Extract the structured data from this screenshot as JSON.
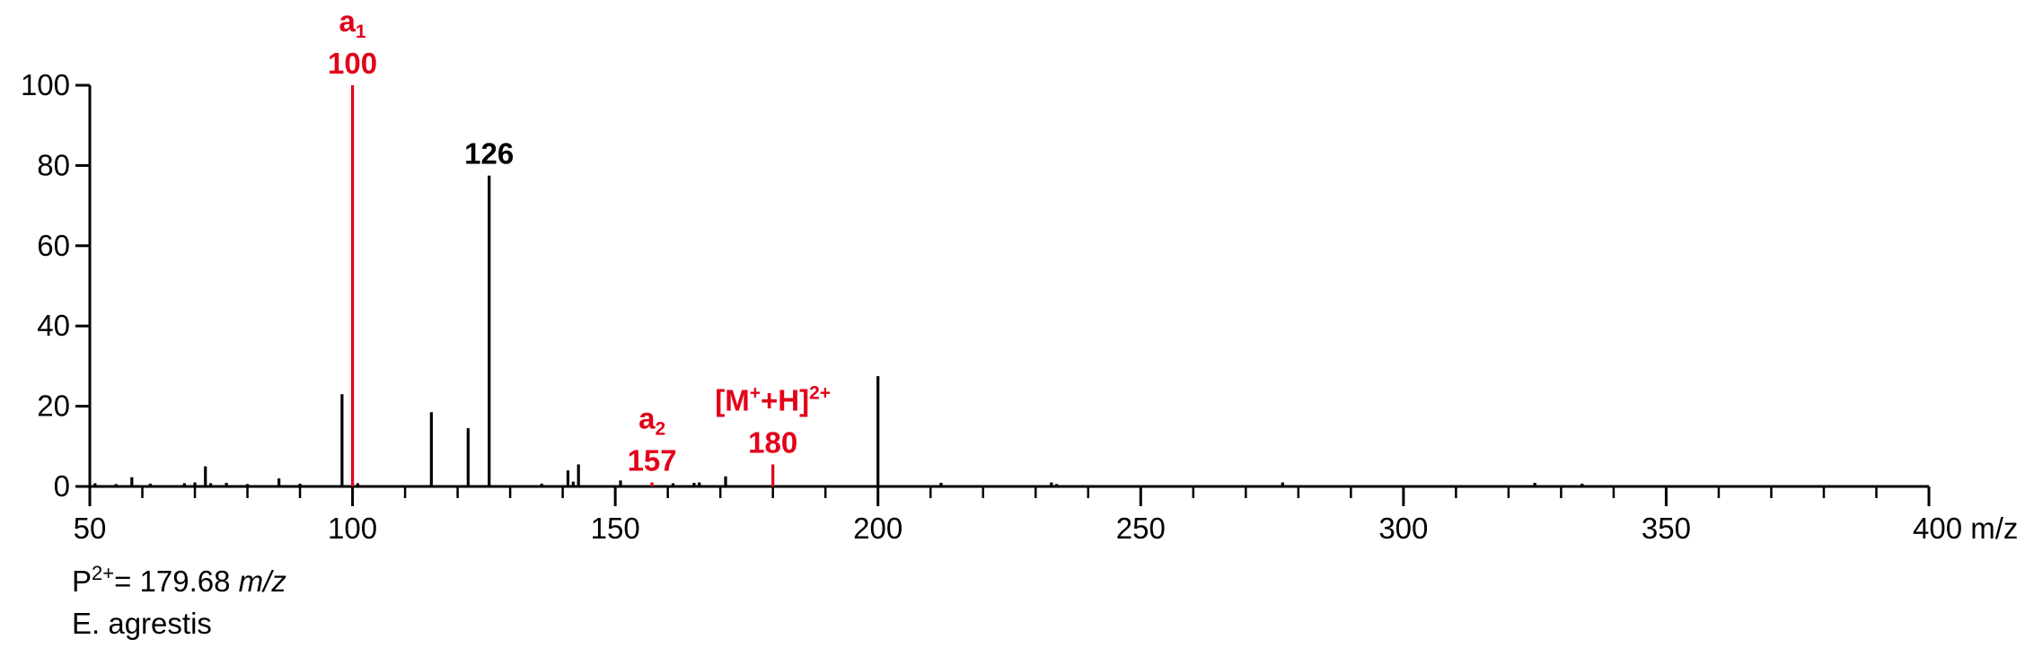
{
  "chart_data": {
    "type": "bar",
    "x_axis": {
      "min": 50,
      "max": 400,
      "major_ticks": [
        50,
        100,
        150,
        200,
        250,
        300,
        350
      ],
      "tick_labels": [
        "50",
        "100",
        "150",
        "200",
        "250",
        "300",
        "350",
        "400 m/z"
      ],
      "minor_step": 10
    },
    "y_axis": {
      "min": 0,
      "max": 100,
      "ticks": [
        0,
        20,
        40,
        60,
        80,
        100
      ],
      "tick_labels": [
        "0",
        "20",
        "40",
        "60",
        "80",
        "100"
      ]
    },
    "colors": {
      "black": "#000000",
      "red": "#e2001a"
    },
    "peaks": [
      {
        "x": 51,
        "y": 0.8,
        "color": "black"
      },
      {
        "x": 55,
        "y": 0.6,
        "color": "black"
      },
      {
        "x": 58,
        "y": 2.3,
        "color": "black"
      },
      {
        "x": 61.5,
        "y": 0.7,
        "color": "black"
      },
      {
        "x": 68,
        "y": 0.8,
        "color": "black"
      },
      {
        "x": 70,
        "y": 1.0,
        "color": "black"
      },
      {
        "x": 72,
        "y": 5.0,
        "color": "black"
      },
      {
        "x": 73,
        "y": 0.8,
        "color": "black"
      },
      {
        "x": 76,
        "y": 0.9,
        "color": "black"
      },
      {
        "x": 80,
        "y": 0.6,
        "color": "black"
      },
      {
        "x": 86,
        "y": 2.0,
        "color": "black"
      },
      {
        "x": 90,
        "y": 0.7,
        "color": "black"
      },
      {
        "x": 98,
        "y": 23,
        "color": "black"
      },
      {
        "x": 100,
        "y": 100,
        "color": "red"
      },
      {
        "x": 101,
        "y": 0.8,
        "color": "black"
      },
      {
        "x": 115,
        "y": 18.5,
        "color": "black"
      },
      {
        "x": 122,
        "y": 14.5,
        "color": "black"
      },
      {
        "x": 126,
        "y": 77.5,
        "color": "black"
      },
      {
        "x": 136,
        "y": 0.7,
        "color": "black"
      },
      {
        "x": 141,
        "y": 4.0,
        "color": "black"
      },
      {
        "x": 142,
        "y": 1.2,
        "color": "black"
      },
      {
        "x": 143,
        "y": 5.5,
        "color": "black"
      },
      {
        "x": 151,
        "y": 1.5,
        "color": "black"
      },
      {
        "x": 157,
        "y": 1.0,
        "color": "red"
      },
      {
        "x": 161,
        "y": 0.8,
        "color": "black"
      },
      {
        "x": 165,
        "y": 0.9,
        "color": "black"
      },
      {
        "x": 166,
        "y": 1.0,
        "color": "black"
      },
      {
        "x": 171,
        "y": 2.5,
        "color": "black"
      },
      {
        "x": 180,
        "y": 5.5,
        "color": "red"
      },
      {
        "x": 200,
        "y": 27.5,
        "color": "black"
      },
      {
        "x": 212,
        "y": 0.9,
        "color": "black"
      },
      {
        "x": 233,
        "y": 1.0,
        "color": "black"
      },
      {
        "x": 234,
        "y": 0.6,
        "color": "black"
      },
      {
        "x": 277,
        "y": 1.0,
        "color": "black"
      },
      {
        "x": 325,
        "y": 0.9,
        "color": "black"
      },
      {
        "x": 334,
        "y": 0.7,
        "color": "black"
      }
    ],
    "annotations": [
      {
        "id": "a1",
        "base": "a",
        "sub": "1",
        "sup": "",
        "value": "100",
        "x": 100,
        "y": 100,
        "color": "red"
      },
      {
        "id": "p126",
        "base": "",
        "sub": "",
        "sup": "",
        "value": "126",
        "x": 126,
        "y": 77.5,
        "color": "black"
      },
      {
        "id": "a2",
        "base": "a",
        "sub": "2",
        "sup": "",
        "value": "157",
        "x": 157,
        "y": 1.0,
        "color": "red"
      },
      {
        "id": "mh",
        "base": "[M",
        "sub": "",
        "sup": "+",
        "tail": "+H]",
        "tail_sup": "2+",
        "value": "180",
        "x": 180,
        "y": 5.5,
        "color": "red"
      }
    ]
  },
  "info": {
    "precursor_prefix": "P",
    "precursor_charge": "2+",
    "precursor_value": "= 179.68 ",
    "precursor_unit": "m/z",
    "species": "E. agrestis"
  }
}
